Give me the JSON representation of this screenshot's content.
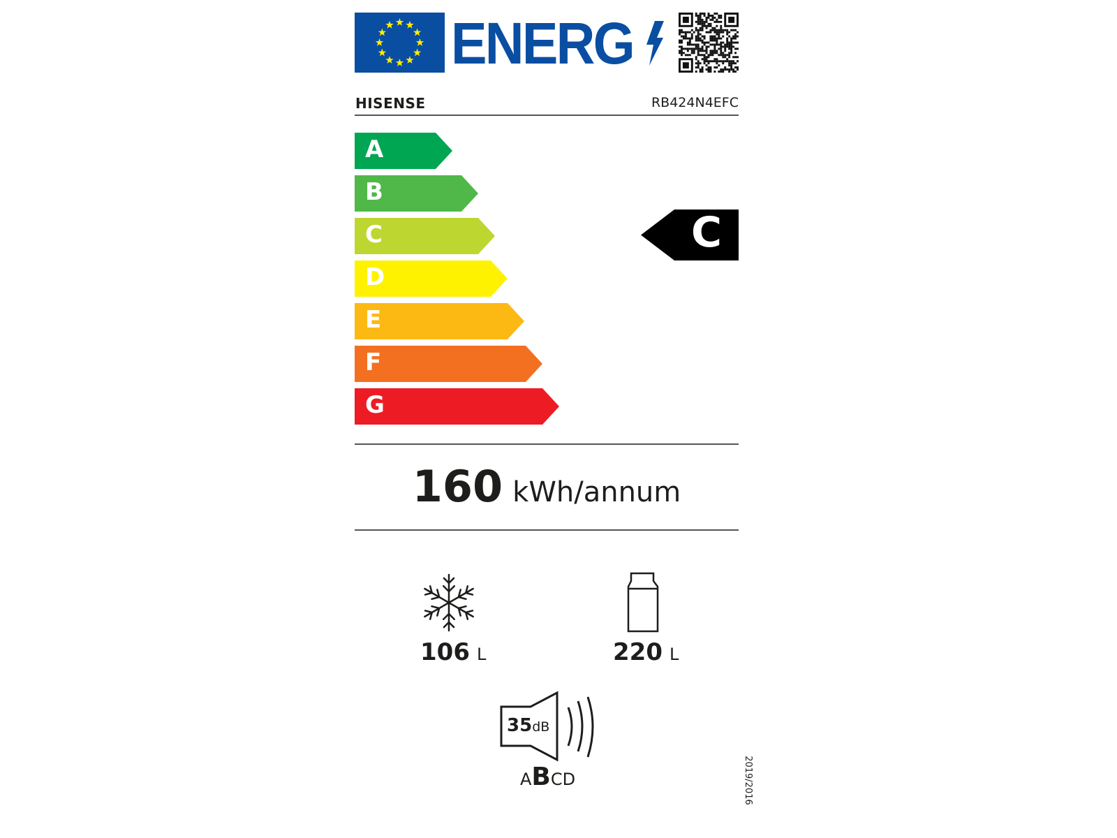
{
  "header": {
    "logo_text": "ENERG",
    "brand": "HISENSE",
    "model": "RB424N4EFC"
  },
  "colors": {
    "eu_blue": "#0a4ea2",
    "star_yellow": "#ffed00"
  },
  "scale": [
    {
      "label": "A",
      "color": "#00a651"
    },
    {
      "label": "B",
      "color": "#50b848"
    },
    {
      "label": "C",
      "color": "#bed630"
    },
    {
      "label": "D",
      "color": "#fff200"
    },
    {
      "label": "E",
      "color": "#fdb913"
    },
    {
      "label": "F",
      "color": "#f37021"
    },
    {
      "label": "G",
      "color": "#ed1c24"
    }
  ],
  "rating": {
    "class": "C"
  },
  "consumption": {
    "value": "160",
    "unit": "kWh/annum"
  },
  "freezer": {
    "icon": "snowflake-icon",
    "value": "106",
    "unit": "L"
  },
  "fridge": {
    "icon": "bottle-icon",
    "value": "220",
    "unit": "L"
  },
  "noise": {
    "icon": "speaker-icon",
    "value": "35",
    "unit": "dB",
    "class_prefix": "A",
    "class": "B",
    "class_suffix": "CD"
  },
  "regulation": "2019/2016"
}
